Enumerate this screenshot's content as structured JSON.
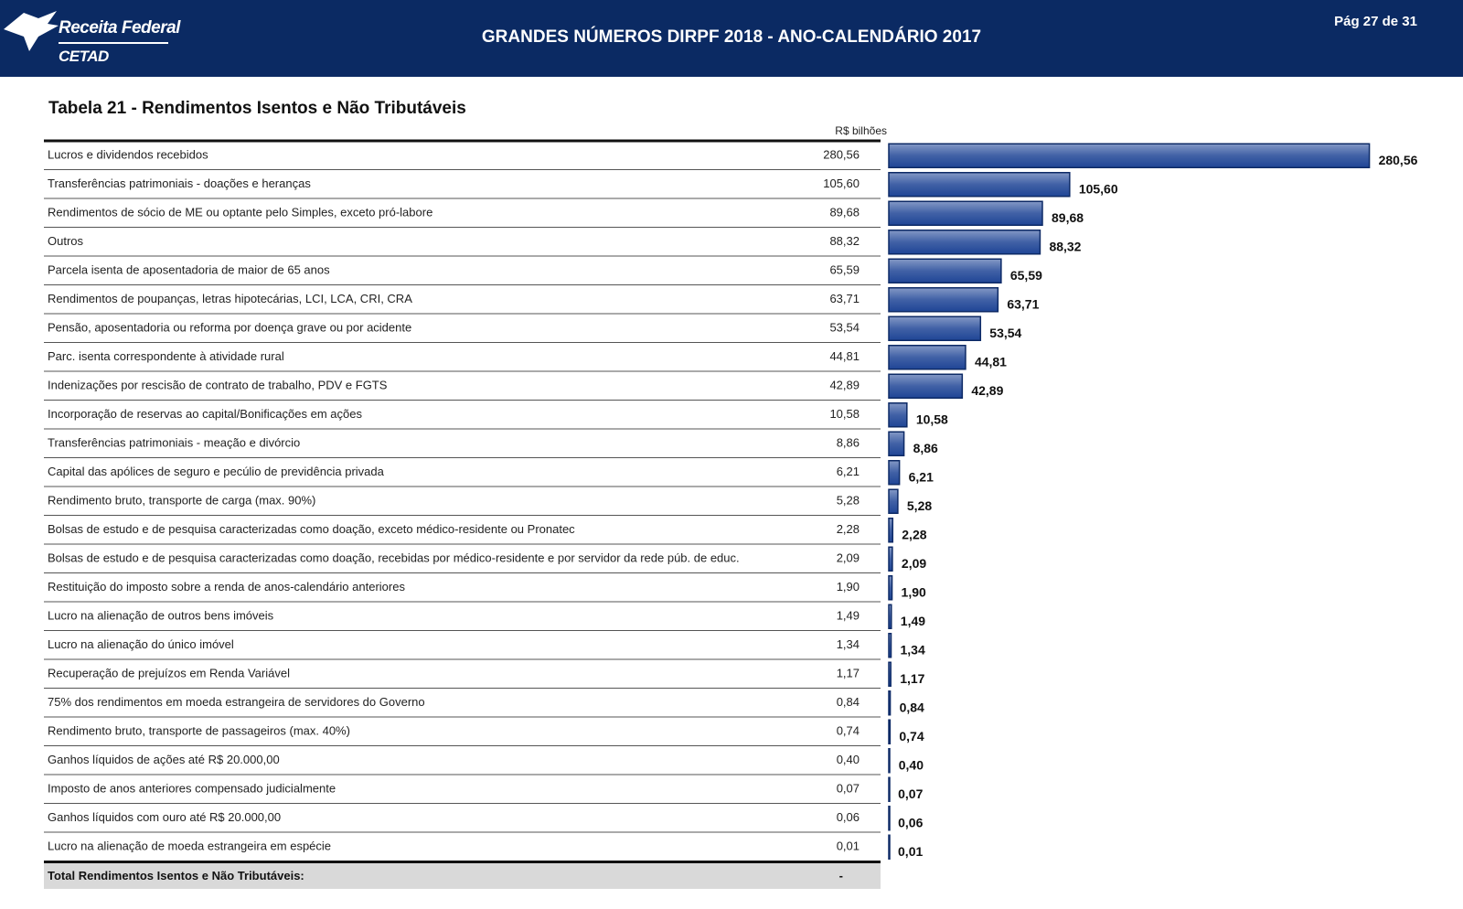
{
  "header": {
    "logo_name": "Receita Federal",
    "logo_unit": "CETAD",
    "title": "GRANDES NÚMEROS DIRPF 2018 - ANO-CALENDÁRIO 2017",
    "page": "Pág 27 de 31"
  },
  "table": {
    "title": "Tabela 21 - Rendimentos Isentos e Não Tributáveis",
    "unit": "R$ bilhões",
    "total_label": "Total Rendimentos Isentos e Não Tributáveis:",
    "total_value": "-"
  },
  "chart_data": {
    "type": "bar",
    "orientation": "horizontal",
    "categories": [
      "Lucros e dividendos recebidos",
      "Transferências patrimoniais - doações e heranças",
      "Rendimentos de sócio de ME ou optante pelo Simples, exceto pró-labore",
      "Outros",
      "Parcela isenta de aposentadoria de maior de 65 anos",
      "Rendimentos de poupanças, letras hipotecárias, LCI, LCA, CRI, CRA",
      "Pensão, aposentadoria ou reforma por doença grave ou por acidente",
      "Parc. isenta correspondente à atividade rural",
      "Indenizações por rescisão de contrato de trabalho, PDV e FGTS",
      "Incorporação de reservas ao capital/Bonificações em ações",
      "Transferências patrimoniais - meação e divórcio",
      "Capital das apólices de seguro e pecúlio de previdência privada",
      "Rendimento bruto, transporte de carga (max. 90%)",
      "Bolsas de estudo e de pesquisa caracterizadas como doação, exceto médico-residente ou Pronatec",
      "Bolsas de estudo e de pesquisa caracterizadas como doação, recebidas por médico-residente e por servidor da rede púb. de educ.",
      "Restituição do imposto sobre a renda de anos-calendário anteriores",
      "Lucro na alienação de outros bens imóveis",
      "Lucro na alienação do único imóvel",
      "Recuperação de prejuízos em Renda Variável",
      "75% dos rendimentos em moeda estrangeira de servidores do Governo",
      "Rendimento bruto, transporte de passageiros (max. 40%)",
      "Ganhos líquidos de ações até R$ 20.000,00",
      "Imposto de anos anteriores compensado judicialmente",
      "Ganhos líquidos com ouro até R$ 20.000,00",
      "Lucro na alienação de moeda estrangeira em espécie"
    ],
    "values": [
      280.56,
      105.6,
      89.68,
      88.32,
      65.59,
      63.71,
      53.54,
      44.81,
      42.89,
      10.58,
      8.86,
      6.21,
      5.28,
      2.28,
      2.09,
      1.9,
      1.49,
      1.34,
      1.17,
      0.84,
      0.74,
      0.4,
      0.07,
      0.06,
      0.01
    ],
    "value_labels": [
      "280,56",
      "105,60",
      "89,68",
      "88,32",
      "65,59",
      "63,71",
      "53,54",
      "44,81",
      "42,89",
      "10,58",
      "8,86",
      "6,21",
      "5,28",
      "2,28",
      "2,09",
      "1,90",
      "1,49",
      "1,34",
      "1,17",
      "0,84",
      "0,74",
      "0,40",
      "0,07",
      "0,06",
      "0,01"
    ],
    "color": "#1f4596",
    "xlim": [
      0,
      300
    ]
  }
}
